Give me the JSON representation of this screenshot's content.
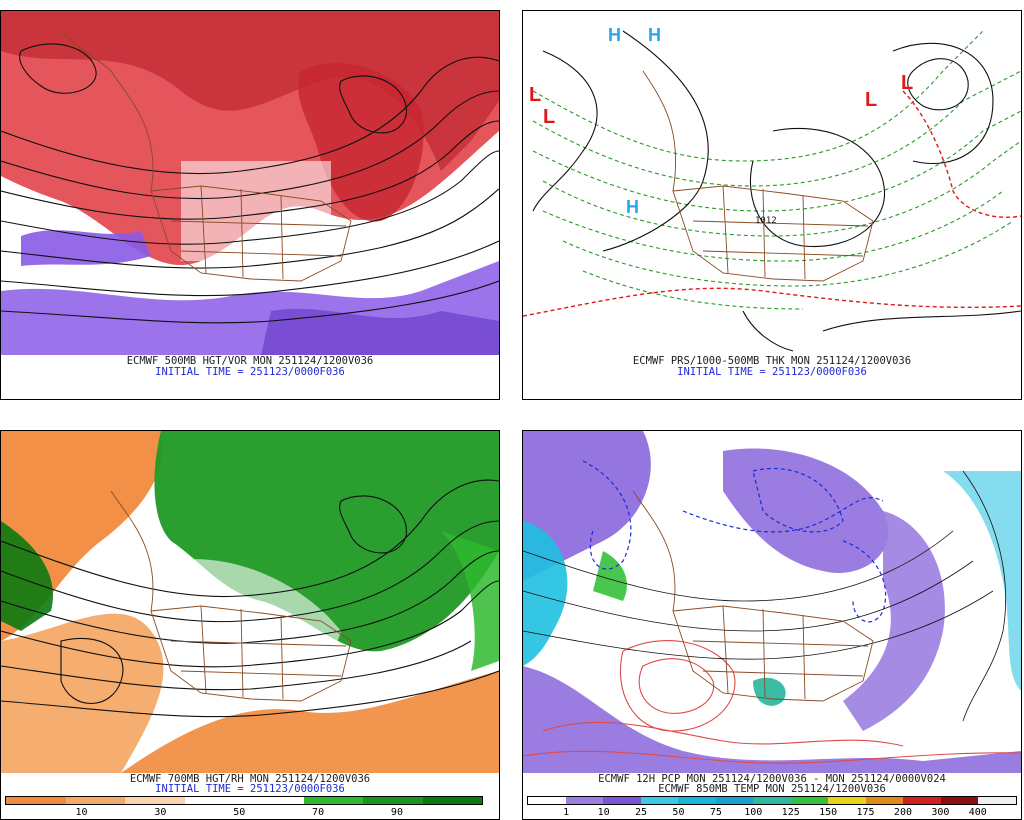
{
  "panels": [
    {
      "id": "hgt-vor",
      "caption1": "ECMWF 500MB HGT/VOR MON 251124/1200V036",
      "caption2": "INITIAL TIME = 251123/0000F036"
    },
    {
      "id": "prs-thk",
      "caption1": "ECMWF PRS/1000-500MB THK MON 251124/1200V036",
      "caption2": "INITIAL TIME = 251123/0000F036",
      "labels": {
        "high": "H",
        "low": "L",
        "isobar": "1012"
      }
    },
    {
      "id": "hgt-rh",
      "caption1": "ECMWF 700MB HGT/RH MON 251124/1200V036",
      "caption2": "INITIAL TIME = 251123/0000F036",
      "colorbar": {
        "ticks": [
          "10",
          "30",
          "50",
          "70",
          "90"
        ],
        "colors": [
          "#f08a3c",
          "#f5a968",
          "#fbd3b0",
          "#ffffff",
          "#ffffff",
          "#2fb82f",
          "#16961a",
          "#0a7a10"
        ]
      }
    },
    {
      "id": "pcp-temp",
      "caption1": "ECMWF 12H PCP MON 251124/1200V036 - MON 251124/0000V024",
      "caption2": "ECMWF 850MB TEMP MON 251124/1200V036",
      "colorbar": {
        "ticks": [
          "1",
          "10",
          "25",
          "50",
          "75",
          "100",
          "125",
          "150",
          "175",
          "200",
          "300",
          "400"
        ],
        "colors": [
          "#ffffff",
          "#9b7ee0",
          "#7a55d6",
          "#3fc7e8",
          "#19b4d8",
          "#1a9fd0",
          "#2fb8a0",
          "#34c03a",
          "#e6d21a",
          "#e08a1a",
          "#d02020",
          "#8a1010",
          "#f0f0f0"
        ]
      }
    }
  ],
  "colors": {
    "height_contour": "#101010",
    "borders": "#8a4a22",
    "vorticity_pos": "#d62a32",
    "vorticity_neg": "#8a5ae6",
    "rh_dry": "#f08a3c",
    "rh_moist": "#1f9a25",
    "thickness_warm": "#e01818",
    "thickness_cool": "#2a9a2a",
    "high_marker": "#2aa6e6",
    "low_marker": "#e01818",
    "precip_light": "#8a66dc",
    "precip_moderate": "#1fc0e0",
    "temp_cold": "#1a2ad8",
    "temp_warm": "#e04a4a"
  }
}
